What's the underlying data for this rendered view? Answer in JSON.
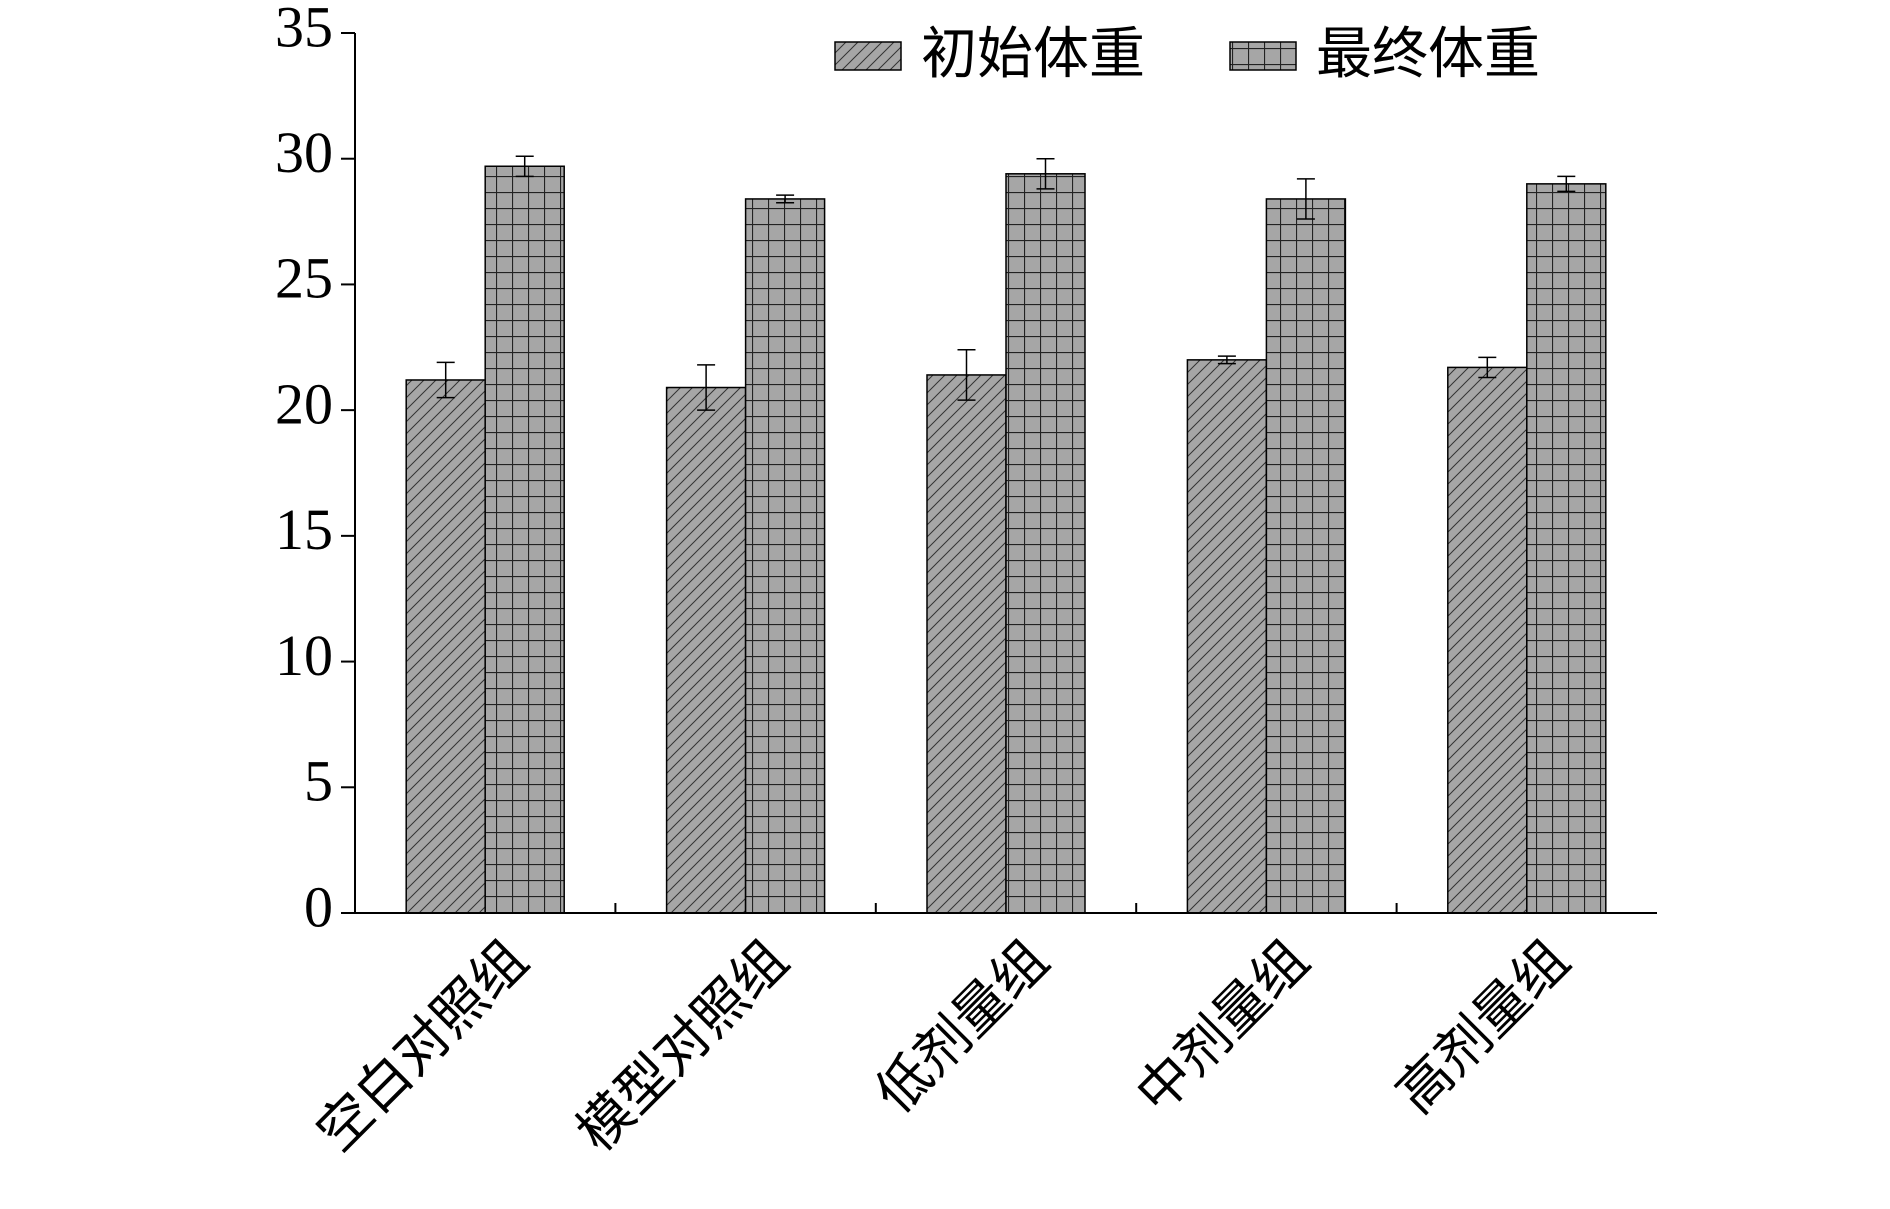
{
  "chart_data": {
    "type": "bar",
    "categories": [
      "空白对照组",
      "模型对照组",
      "低剂量组",
      "中剂量组",
      "高剂量组"
    ],
    "series": [
      {
        "name": "初始体重",
        "color": "#a6a6a6",
        "pattern": "diagonal",
        "values": [
          21.2,
          20.9,
          21.4,
          22.0,
          21.7
        ],
        "errors": [
          0.7,
          0.9,
          1.0,
          0.15,
          0.4
        ]
      },
      {
        "name": "最终体重",
        "color": "#a6a6a6",
        "pattern": "grid",
        "values": [
          29.7,
          28.4,
          29.4,
          28.4,
          29.0
        ],
        "errors": [
          0.4,
          0.15,
          0.6,
          0.8,
          0.3
        ]
      }
    ],
    "ylim": [
      0,
      35
    ],
    "yticks": [
      0,
      5,
      10,
      15,
      20,
      25,
      30,
      35
    ],
    "legend": "upper right"
  }
}
